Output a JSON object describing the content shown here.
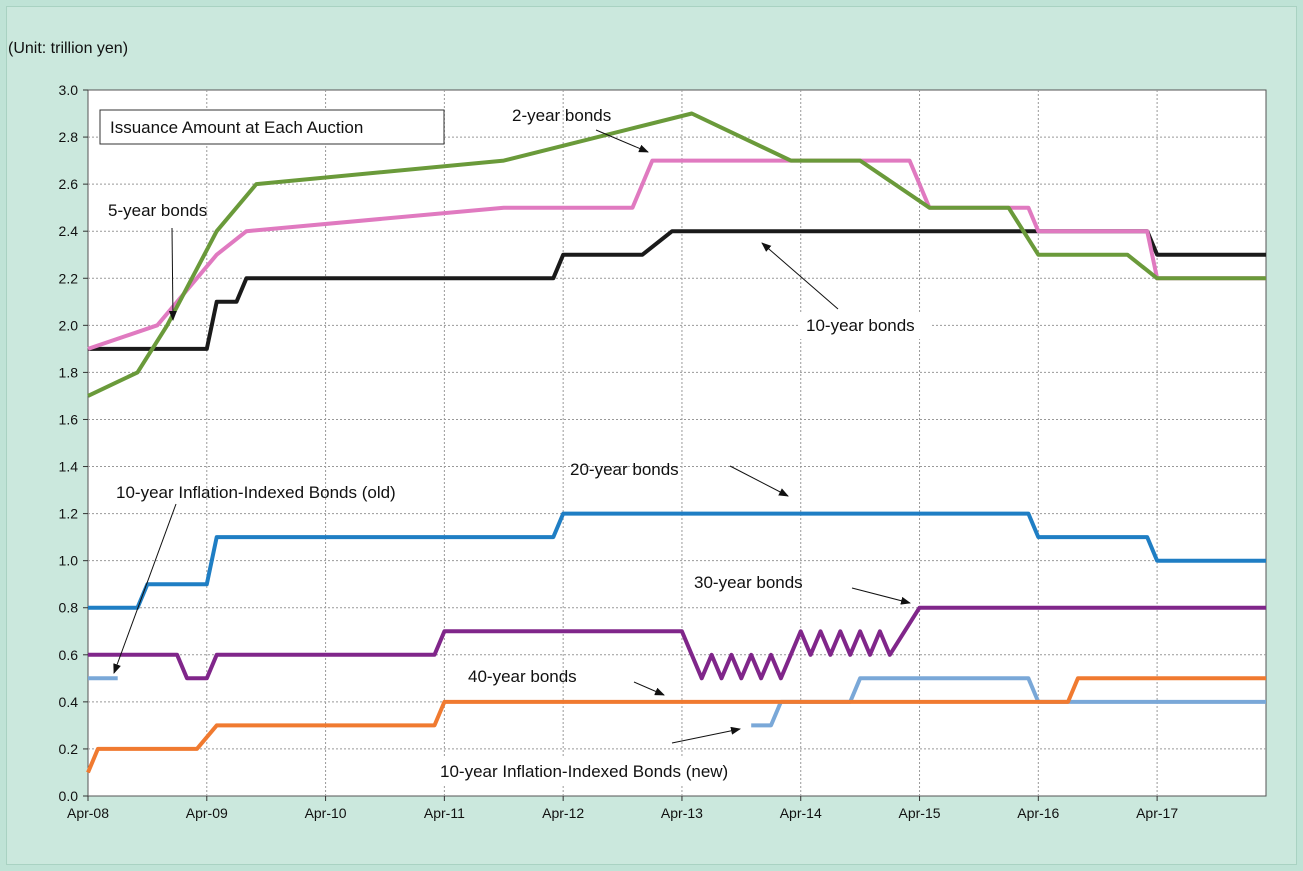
{
  "unit_label": "(Unit: trillion yen)",
  "chart_data": {
    "type": "line",
    "title": "Issuance Amount at Each Auction",
    "x_ticks": [
      "Apr-08",
      "Apr-09",
      "Apr-10",
      "Apr-11",
      "Apr-12",
      "Apr-13",
      "Apr-14",
      "Apr-15",
      "Apr-16",
      "Apr-17"
    ],
    "x_range": [
      "Apr-08",
      "Mar-18"
    ],
    "ylim": [
      0,
      3.0
    ],
    "y_ticks": [
      "0.0",
      "0.2",
      "0.4",
      "0.6",
      "0.8",
      "1.0",
      "1.2",
      "1.4",
      "1.6",
      "1.8",
      "2.0",
      "2.2",
      "2.4",
      "2.6",
      "2.8",
      "3.0"
    ],
    "grid": true,
    "series": [
      {
        "name": "2-year bonds",
        "color": "#6a9a3a",
        "points": [
          [
            "Apr-08",
            1.7
          ],
          [
            "Sep-08",
            1.8
          ],
          [
            "Dec-08",
            2.0
          ],
          [
            "May-09",
            2.4
          ],
          [
            "Sep-09",
            2.6
          ],
          [
            "Oct-11",
            2.7
          ],
          [
            "May-13",
            2.9
          ],
          [
            "Mar-14",
            2.7
          ],
          [
            "Oct-14",
            2.7
          ],
          [
            "May-15",
            2.5
          ],
          [
            "Jan-16",
            2.5
          ],
          [
            "Apr-16",
            2.3
          ],
          [
            "Jan-17",
            2.3
          ],
          [
            "Apr-17",
            2.2
          ],
          [
            "Mar-18",
            2.2
          ]
        ]
      },
      {
        "name": "5-year bonds",
        "color": "#e07ac0",
        "points": [
          [
            "Apr-08",
            1.9
          ],
          [
            "Nov-08",
            2.0
          ],
          [
            "May-09",
            2.3
          ],
          [
            "Aug-09",
            2.4
          ],
          [
            "Oct-11",
            2.5
          ],
          [
            "Nov-12",
            2.5
          ],
          [
            "Jan-13",
            2.7
          ],
          [
            "Mar-15",
            2.7
          ],
          [
            "May-15",
            2.5
          ],
          [
            "Mar-16",
            2.5
          ],
          [
            "Apr-16",
            2.4
          ],
          [
            "Mar-17",
            2.4
          ],
          [
            "Apr-17",
            2.2
          ],
          [
            "Mar-18",
            2.2
          ]
        ]
      },
      {
        "name": "10-year bonds",
        "color": "#1a1a1a",
        "points": [
          [
            "Apr-08",
            1.9
          ],
          [
            "Apr-09",
            1.9
          ],
          [
            "May-09",
            2.1
          ],
          [
            "Jul-09",
            2.1
          ],
          [
            "Aug-09",
            2.2
          ],
          [
            "Mar-12",
            2.2
          ],
          [
            "Apr-12",
            2.3
          ],
          [
            "Dec-12",
            2.3
          ],
          [
            "Mar-13",
            2.4
          ],
          [
            "Mar-17",
            2.4
          ],
          [
            "Apr-17",
            2.3
          ],
          [
            "Mar-18",
            2.3
          ]
        ]
      },
      {
        "name": "20-year bonds",
        "color": "#1f7ec4",
        "points": [
          [
            "Apr-08",
            0.8
          ],
          [
            "Sep-08",
            0.8
          ],
          [
            "Oct-08",
            0.9
          ],
          [
            "Apr-09",
            0.9
          ],
          [
            "May-09",
            1.1
          ],
          [
            "Mar-12",
            1.1
          ],
          [
            "Apr-12",
            1.2
          ],
          [
            "Mar-16",
            1.2
          ],
          [
            "Apr-16",
            1.1
          ],
          [
            "Mar-17",
            1.1
          ],
          [
            "Apr-17",
            1.0
          ],
          [
            "Mar-18",
            1.0
          ]
        ]
      },
      {
        "name": "30-year bonds",
        "color": "#80268a",
        "points": [
          [
            "Apr-08",
            0.6
          ],
          [
            "Jan-09",
            0.6
          ],
          [
            "Feb-09",
            0.5
          ],
          [
            "Apr-09",
            0.5
          ],
          [
            "May-09",
            0.6
          ],
          [
            "Mar-11",
            0.6
          ],
          [
            "Apr-11",
            0.7
          ],
          [
            "Apr-13",
            0.7
          ],
          [
            "May-13",
            0.6
          ],
          [
            "Jun-13",
            0.5
          ],
          [
            "Jul-13",
            0.6
          ],
          [
            "Aug-13",
            0.5
          ],
          [
            "Sep-13",
            0.6
          ],
          [
            "Oct-13",
            0.5
          ],
          [
            "Nov-13",
            0.6
          ],
          [
            "Dec-13",
            0.5
          ],
          [
            "Jan-14",
            0.6
          ],
          [
            "Feb-14",
            0.5
          ],
          [
            "Mar-14",
            0.6
          ],
          [
            "Apr-14",
            0.7
          ],
          [
            "May-14",
            0.6
          ],
          [
            "Jun-14",
            0.7
          ],
          [
            "Jul-14",
            0.6
          ],
          [
            "Aug-14",
            0.7
          ],
          [
            "Sep-14",
            0.6
          ],
          [
            "Oct-14",
            0.7
          ],
          [
            "Nov-14",
            0.6
          ],
          [
            "Dec-14",
            0.7
          ],
          [
            "Jan-15",
            0.6
          ],
          [
            "Apr-15",
            0.8
          ],
          [
            "Mar-18",
            0.8
          ]
        ]
      },
      {
        "name": "40-year bonds",
        "color": "#f07a30",
        "points": [
          [
            "Apr-08",
            0.1
          ],
          [
            "May-08",
            0.2
          ],
          [
            "Mar-09",
            0.2
          ],
          [
            "May-09",
            0.3
          ],
          [
            "Mar-11",
            0.3
          ],
          [
            "Apr-11",
            0.4
          ],
          [
            "Jul-16",
            0.4
          ],
          [
            "Aug-16",
            0.5
          ],
          [
            "Mar-18",
            0.5
          ]
        ]
      },
      {
        "name": "10-year Inflation-Indexed Bonds (old)",
        "color": "#7aa8d8",
        "points": [
          [
            "Apr-08",
            0.5
          ],
          [
            "Jul-08",
            0.5
          ]
        ]
      },
      {
        "name": "10-year Inflation-Indexed Bonds (new)",
        "color": "#7aa8d8",
        "points": [
          [
            "Nov-13",
            0.3
          ],
          [
            "Jan-14",
            0.3
          ],
          [
            "Feb-14",
            0.4
          ],
          [
            "Sep-14",
            0.4
          ],
          [
            "Oct-14",
            0.5
          ],
          [
            "Mar-16",
            0.5
          ],
          [
            "Apr-16",
            0.4
          ],
          [
            "Mar-18",
            0.4
          ]
        ]
      }
    ],
    "annotations": [
      {
        "text": "2-year bonds"
      },
      {
        "text": "5-year bonds"
      },
      {
        "text": "10-year bonds"
      },
      {
        "text": "20-year bonds"
      },
      {
        "text": "10-year Inflation-Indexed Bonds (old)"
      },
      {
        "text": "30-year bonds"
      },
      {
        "text": "40-year bonds"
      },
      {
        "text": "10-year Inflation-Indexed Bonds (new)"
      }
    ]
  }
}
